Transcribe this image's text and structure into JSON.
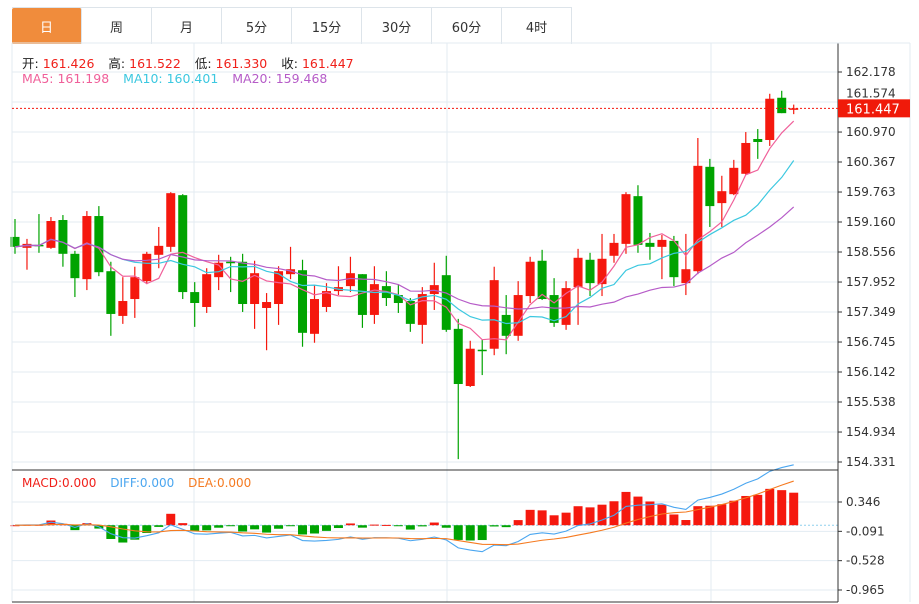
{
  "tabs": [
    {
      "label": "日",
      "active": true
    },
    {
      "label": "周",
      "active": false
    },
    {
      "label": "月",
      "active": false
    },
    {
      "label": "5分",
      "active": false
    },
    {
      "label": "15分",
      "active": false
    },
    {
      "label": "30分",
      "active": false
    },
    {
      "label": "60分",
      "active": false
    },
    {
      "label": "4时",
      "active": false
    }
  ],
  "ohlc_info": {
    "open_label": "开:",
    "open": "161.426",
    "high_label": "高:",
    "high": "161.522",
    "low_label": "低:",
    "low": "161.330",
    "close_label": "收:",
    "close": "161.447"
  },
  "ma_info": {
    "ma5": "MA5: 161.198",
    "ma10": "MA10: 160.401",
    "ma20": "MA20: 159.468"
  },
  "macd_info": {
    "macd": "MACD:0.000",
    "diff": "DIFF:0.000",
    "dea": "DEA:0.000"
  },
  "current_price": "161.447",
  "colors": {
    "up": "#f5180e",
    "down": "#00a300",
    "ma5": "#f0609a",
    "ma10": "#3cc8e0",
    "ma20": "#b65cc8",
    "macd": "#f0201a",
    "diff": "#4aa6f0",
    "dea": "#f57a20",
    "accent": "#f08c3c"
  },
  "chart_data": {
    "type": "candlestick",
    "price_axis": {
      "ticks": [
        "162.178",
        "161.574",
        "160.970",
        "160.367",
        "159.763",
        "159.160",
        "158.556",
        "157.952",
        "157.349",
        "156.745",
        "156.142",
        "155.538",
        "154.934",
        "154.331"
      ],
      "range": [
        154.331,
        162.178
      ]
    },
    "macd_axis": {
      "ticks": [
        "0.346",
        "-0.091",
        "-0.528",
        "-0.965"
      ],
      "range": [
        -1.13,
        0.53
      ]
    },
    "candles_ohlc": [
      [
        158.86,
        159.22,
        158.52,
        158.66
      ],
      [
        158.64,
        158.82,
        158.2,
        158.72
      ],
      [
        158.7,
        159.32,
        158.54,
        158.68
      ],
      [
        158.64,
        159.26,
        158.62,
        159.18
      ],
      [
        159.2,
        159.3,
        158.26,
        158.52
      ],
      [
        158.52,
        158.58,
        157.65,
        158.03
      ],
      [
        158.01,
        159.38,
        157.79,
        159.28
      ],
      [
        159.28,
        159.48,
        158.07,
        158.15
      ],
      [
        158.17,
        158.36,
        156.87,
        157.31
      ],
      [
        157.27,
        158.05,
        157.11,
        157.57
      ],
      [
        157.61,
        158.26,
        157.23,
        158.05
      ],
      [
        157.97,
        158.56,
        157.91,
        158.52
      ],
      [
        158.5,
        159.06,
        158.23,
        158.68
      ],
      [
        158.66,
        159.76,
        158.56,
        159.74
      ],
      [
        159.7,
        159.72,
        157.61,
        157.75
      ],
      [
        157.75,
        157.95,
        157.05,
        157.53
      ],
      [
        157.45,
        158.23,
        157.33,
        158.11
      ],
      [
        158.05,
        158.5,
        157.79,
        158.34
      ],
      [
        158.36,
        158.46,
        157.75,
        158.34
      ],
      [
        158.36,
        158.52,
        157.35,
        157.51
      ],
      [
        157.51,
        158.38,
        157.01,
        158.13
      ],
      [
        157.43,
        157.73,
        156.58,
        157.55
      ],
      [
        157.51,
        158.27,
        157.09,
        158.17
      ],
      [
        158.11,
        158.66,
        158.01,
        158.21
      ],
      [
        158.19,
        158.4,
        156.65,
        156.93
      ],
      [
        156.91,
        157.89,
        156.73,
        157.61
      ],
      [
        157.45,
        157.93,
        157.35,
        157.77
      ],
      [
        157.77,
        158.27,
        157.69,
        157.85
      ],
      [
        157.87,
        158.46,
        157.75,
        158.13
      ],
      [
        158.11,
        158.11,
        157.03,
        157.29
      ],
      [
        157.29,
        158.27,
        157.11,
        157.91
      ],
      [
        157.87,
        158.17,
        157.47,
        157.63
      ],
      [
        157.69,
        157.91,
        157.33,
        157.53
      ],
      [
        157.57,
        157.63,
        156.95,
        157.11
      ],
      [
        157.09,
        157.85,
        156.71,
        157.71
      ],
      [
        157.71,
        158.34,
        157.39,
        157.89
      ],
      [
        158.09,
        158.48,
        156.95,
        156.99
      ],
      [
        157.01,
        157.21,
        154.39,
        155.9
      ],
      [
        155.86,
        156.77,
        155.84,
        156.61
      ],
      [
        156.59,
        156.79,
        156.08,
        156.57
      ],
      [
        156.61,
        158.26,
        156.48,
        157.99
      ],
      [
        157.29,
        157.69,
        156.5,
        156.87
      ],
      [
        156.87,
        157.97,
        156.77,
        157.69
      ],
      [
        157.67,
        158.46,
        157.53,
        158.36
      ],
      [
        158.38,
        158.6,
        157.59,
        157.61
      ],
      [
        157.69,
        158.03,
        157.05,
        157.13
      ],
      [
        157.09,
        157.97,
        156.99,
        157.83
      ],
      [
        157.85,
        158.62,
        157.09,
        158.44
      ],
      [
        158.4,
        158.54,
        157.67,
        157.93
      ],
      [
        157.91,
        158.92,
        157.67,
        158.42
      ],
      [
        158.48,
        158.92,
        158.34,
        158.74
      ],
      [
        158.72,
        159.76,
        158.52,
        159.72
      ],
      [
        159.68,
        159.9,
        158.54,
        158.7
      ],
      [
        158.74,
        158.94,
        158.4,
        158.66
      ],
      [
        158.66,
        158.9,
        158.01,
        158.8
      ],
      [
        158.78,
        158.88,
        157.87,
        158.05
      ],
      [
        157.93,
        158.92,
        157.69,
        158.21
      ],
      [
        158.17,
        160.85,
        158.11,
        160.29
      ],
      [
        160.27,
        160.43,
        159.06,
        159.48
      ],
      [
        159.54,
        160.09,
        159.06,
        159.78
      ],
      [
        159.72,
        160.41,
        159.7,
        160.25
      ],
      [
        160.13,
        160.97,
        160.11,
        160.75
      ],
      [
        160.83,
        161.03,
        160.43,
        160.77
      ],
      [
        160.81,
        161.74,
        160.69,
        161.64
      ],
      [
        161.66,
        161.8,
        161.35,
        161.35
      ],
      [
        161.426,
        161.522,
        161.33,
        161.447
      ]
    ]
  }
}
